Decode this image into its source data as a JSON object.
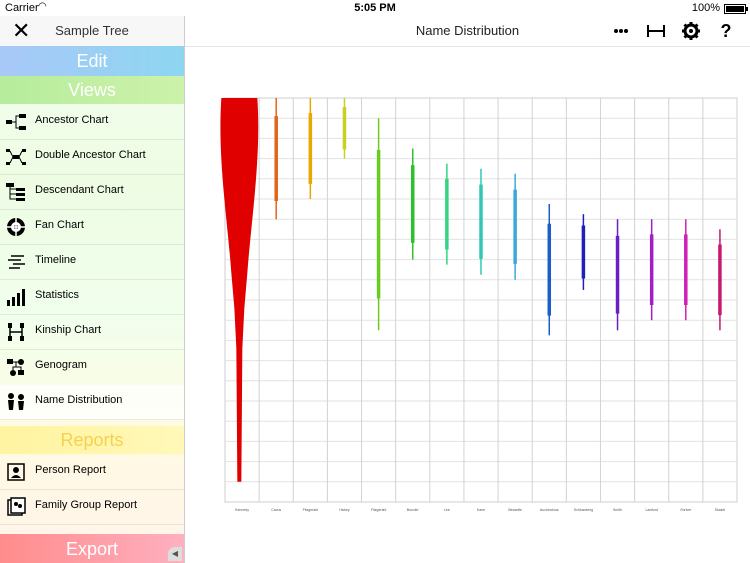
{
  "status": {
    "carrier": "Carrier",
    "time": "5:05 PM",
    "battery": "100%"
  },
  "sidebar": {
    "title": "Sample Tree",
    "sections": {
      "edit": "Edit",
      "views": "Views",
      "reports": "Reports",
      "export": "Export"
    },
    "views": [
      {
        "label": "Ancestor Chart",
        "icon": "ancestor-chart-icon"
      },
      {
        "label": "Double Ancestor Chart",
        "icon": "double-ancestor-chart-icon"
      },
      {
        "label": "Descendant Chart",
        "icon": "descendant-chart-icon"
      },
      {
        "label": "Fan Chart",
        "icon": "fan-chart-icon"
      },
      {
        "label": "Timeline",
        "icon": "timeline-icon"
      },
      {
        "label": "Statistics",
        "icon": "statistics-icon"
      },
      {
        "label": "Kinship Chart",
        "icon": "kinship-chart-icon"
      },
      {
        "label": "Genogram",
        "icon": "genogram-icon"
      },
      {
        "label": "Name Distribution",
        "icon": "name-distribution-icon",
        "selected": true
      }
    ],
    "reports": [
      {
        "label": "Person Report",
        "icon": "person-report-icon"
      },
      {
        "label": "Family Group Report",
        "icon": "family-group-report-icon"
      }
    ]
  },
  "header": {
    "title": "Name Distribution",
    "toolbar": [
      "more-icon",
      "width-icon",
      "settings-icon",
      "help-icon"
    ]
  },
  "chart_data": {
    "type": "other",
    "description_note": "",
    "y_range": [
      1600,
      2000
    ],
    "y_reversed": true,
    "columns": [
      {
        "name": "Kennedy",
        "color": "#e00000",
        "shape": "blob",
        "start": 1600,
        "end": 1980
      },
      {
        "name": "Cavus",
        "color": "#e0651a",
        "start": 1600,
        "end": 1720
      },
      {
        "name": "Fitzgerald",
        "color": "#e8a800",
        "start": 1600,
        "end": 1700
      },
      {
        "name": "Hickey",
        "color": "#c8d020",
        "start": 1600,
        "end": 1660
      },
      {
        "name": "Fitzgerald",
        "color": "#6acc20",
        "start": 1620,
        "end": 1830
      },
      {
        "name": "Bouvier",
        "color": "#2cc12c",
        "start": 1650,
        "end": 1760
      },
      {
        "name": "Lee",
        "color": "#34d484",
        "start": 1665,
        "end": 1765
      },
      {
        "name": "Kane",
        "color": "#30c8b4",
        "start": 1670,
        "end": 1775
      },
      {
        "name": "Bessette",
        "color": "#3aa8d8",
        "start": 1675,
        "end": 1780
      },
      {
        "name": "Auchincloss",
        "color": "#1a5ec8",
        "start": 1705,
        "end": 1835
      },
      {
        "name": "Schlossberg",
        "color": "#2020b8",
        "start": 1715,
        "end": 1790
      },
      {
        "name": "Smith",
        "color": "#6a20c0",
        "start": 1720,
        "end": 1830
      },
      {
        "name": "Lawford",
        "color": "#a020c8",
        "start": 1720,
        "end": 1820
      },
      {
        "name": "Shriver",
        "color": "#d020b4",
        "start": 1720,
        "end": 1820
      },
      {
        "name": "Skakel",
        "color": "#c81870",
        "start": 1730,
        "end": 1830
      }
    ]
  }
}
